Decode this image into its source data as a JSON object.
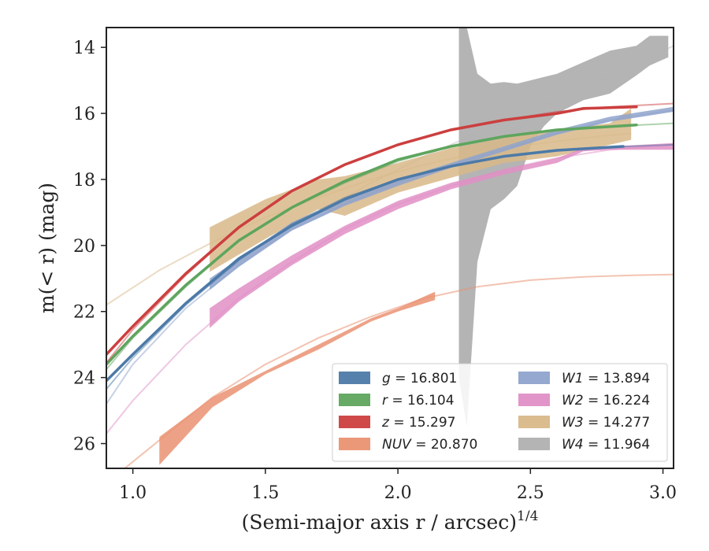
{
  "chart_data": {
    "type": "line",
    "xlabel": "(Semi-major axis r / arcsec)",
    "xlabel_superscript": "1/4",
    "ylabel": "m(< r) (mag)",
    "xlim": [
      0.9,
      3.04
    ],
    "ylim": [
      26.75,
      13.4
    ],
    "y_inverted": true,
    "x_ticks": [
      "1.0",
      "1.5",
      "2.0",
      "2.5",
      "3.0"
    ],
    "y_ticks": [
      "14",
      "16",
      "18",
      "20",
      "22",
      "24",
      "26"
    ],
    "grid": false,
    "legend_position": "lower-right",
    "series": [
      {
        "name": "g = 16.801",
        "band": "g",
        "total_mag": "16.801",
        "color": "#4c7aa8",
        "kind": "line",
        "model_x": [
          0.9,
          1.0,
          1.2,
          1.4,
          1.6,
          1.8,
          2.0,
          2.2,
          2.4,
          2.6,
          2.8,
          3.04
        ],
        "model_y": [
          24.35,
          23.4,
          21.8,
          20.45,
          19.35,
          18.55,
          18.0,
          17.6,
          17.3,
          17.12,
          17.02,
          16.95
        ],
        "model_opacity": 0.5,
        "data_x": [
          0.9,
          1.0,
          1.2,
          1.4,
          1.6,
          1.8,
          2.0,
          2.2,
          2.4,
          2.6,
          2.85
        ],
        "data_y": [
          24.1,
          23.3,
          21.75,
          20.4,
          19.4,
          18.6,
          18.0,
          17.6,
          17.3,
          17.12,
          17.0
        ]
      },
      {
        "name": "r = 16.104",
        "band": "r",
        "total_mag": "16.104",
        "color": "#5ea55e",
        "kind": "line",
        "model_x": [
          0.9,
          1.0,
          1.2,
          1.4,
          1.6,
          1.8,
          2.0,
          2.2,
          2.4,
          2.6,
          2.8,
          3.04
        ],
        "model_y": [
          23.75,
          22.8,
          21.25,
          19.85,
          18.85,
          18.1,
          17.45,
          17.0,
          16.7,
          16.5,
          16.4,
          16.3
        ],
        "model_opacity": 0.5,
        "data_x": [
          0.9,
          1.0,
          1.2,
          1.4,
          1.6,
          1.8,
          2.0,
          2.2,
          2.4,
          2.6,
          2.9
        ],
        "data_y": [
          23.6,
          22.75,
          21.2,
          19.85,
          18.85,
          18.05,
          17.4,
          17.0,
          16.7,
          16.5,
          16.35
        ]
      },
      {
        "name": "z = 15.297",
        "band": "z",
        "total_mag": "15.297",
        "color": "#cc3f3f",
        "kind": "line",
        "model_x": [
          0.9,
          1.0,
          1.2,
          1.4,
          1.6,
          1.8,
          2.0,
          2.2,
          2.4,
          2.6,
          2.8,
          3.04
        ],
        "model_y": [
          23.55,
          22.55,
          20.9,
          19.45,
          18.35,
          17.55,
          16.95,
          16.5,
          16.2,
          15.95,
          15.8,
          15.7
        ],
        "model_opacity": 0.5,
        "data_x": [
          0.9,
          1.0,
          1.2,
          1.4,
          1.6,
          1.8,
          2.0,
          2.2,
          2.4,
          2.6,
          2.7,
          2.9
        ],
        "data_y": [
          23.3,
          22.45,
          20.85,
          19.45,
          18.35,
          17.55,
          16.95,
          16.5,
          16.2,
          16.0,
          15.85,
          15.8
        ]
      },
      {
        "name": "NUV = 20.870",
        "band": "NUV",
        "total_mag": "20.870",
        "color": "#ea9272",
        "kind": "band",
        "model_x": [
          0.9,
          1.1,
          1.3,
          1.5,
          1.7,
          1.9,
          2.1,
          2.3,
          2.5,
          2.7,
          2.9,
          3.04
        ],
        "model_y": [
          27.2,
          25.9,
          24.6,
          23.6,
          22.8,
          22.15,
          21.6,
          21.25,
          21.05,
          20.95,
          20.9,
          20.88
        ],
        "model_opacity": 0.55,
        "data_x": [
          1.1,
          1.3,
          1.5,
          1.7,
          1.9,
          2.0,
          2.14
        ],
        "data_lo": [
          25.8,
          24.6,
          23.8,
          23.0,
          22.2,
          21.9,
          21.4
        ],
        "data_hi": [
          26.65,
          24.9,
          23.9,
          23.15,
          22.3,
          22.0,
          21.65
        ]
      },
      {
        "name": "W1 = 13.894",
        "band": "W1",
        "total_mag": "13.894",
        "color": "#8fa3cc",
        "kind": "band",
        "model_x": [
          0.9,
          1.0,
          1.2,
          1.4,
          1.6,
          1.8,
          2.0,
          2.2,
          2.4,
          2.6,
          2.8,
          3.04
        ],
        "model_y": [
          24.8,
          23.6,
          21.9,
          20.6,
          19.5,
          18.75,
          18.1,
          17.55,
          17.1,
          16.6,
          16.2,
          15.9
        ],
        "model_opacity": 0.5,
        "data_x": [
          1.29,
          1.4,
          1.6,
          1.8,
          2.0,
          2.2,
          2.4,
          2.6,
          2.8,
          3.04
        ],
        "data_lo": [
          21.0,
          20.4,
          19.3,
          18.6,
          18.0,
          17.5,
          17.0,
          16.5,
          16.1,
          15.8
        ],
        "data_hi": [
          21.35,
          20.65,
          19.55,
          18.8,
          18.2,
          17.65,
          17.15,
          16.65,
          16.25,
          15.95
        ]
      },
      {
        "name": "W2 = 16.224",
        "band": "W2",
        "total_mag": "16.224",
        "color": "#e08fc6",
        "kind": "band",
        "model_x": [
          0.9,
          1.0,
          1.2,
          1.4,
          1.6,
          1.8,
          2.0,
          2.2,
          2.4,
          2.6,
          2.8,
          3.04
        ],
        "model_y": [
          25.7,
          24.7,
          23.0,
          21.6,
          20.5,
          19.5,
          18.75,
          18.2,
          17.7,
          17.35,
          17.1,
          16.95
        ],
        "model_opacity": 0.5,
        "data_x": [
          1.29,
          1.4,
          1.6,
          1.8,
          2.0,
          2.2,
          2.4,
          2.6,
          2.7,
          2.8,
          3.04
        ],
        "data_lo": [
          21.9,
          21.3,
          20.3,
          19.4,
          18.65,
          18.1,
          17.7,
          17.35,
          17.05,
          17.0,
          16.9
        ],
        "data_hi": [
          22.5,
          21.7,
          20.6,
          19.65,
          18.9,
          18.3,
          17.85,
          17.5,
          17.15,
          17.1,
          17.1
        ]
      },
      {
        "name": "W3 = 14.277",
        "band": "W3",
        "total_mag": "14.277",
        "color": "#d8b888",
        "kind": "band",
        "model_x": [
          0.9,
          1.1,
          1.3,
          1.5,
          1.7,
          1.9,
          2.1,
          2.3,
          2.5,
          2.7,
          2.88
        ],
        "model_y": [
          21.8,
          20.75,
          19.9,
          19.15,
          18.55,
          18.0,
          17.55,
          17.2,
          16.95,
          16.75,
          16.6
        ],
        "model_opacity": 0.5,
        "data_x": [
          1.29,
          1.5,
          1.7,
          1.8,
          2.0,
          2.2,
          2.4,
          2.6,
          2.8,
          2.88
        ],
        "data_lo": [
          19.45,
          18.6,
          18.0,
          17.9,
          17.5,
          17.05,
          16.75,
          16.5,
          16.3,
          15.85
        ],
        "data_hi": [
          20.8,
          19.8,
          18.9,
          19.1,
          18.4,
          17.95,
          17.5,
          17.3,
          16.95,
          16.8
        ]
      },
      {
        "name": "W4 = 11.964",
        "band": "W4",
        "total_mag": "11.964",
        "color": "#b0b0b0",
        "kind": "band",
        "model_x": [
          1.29,
          1.5,
          1.7,
          1.9,
          2.1,
          2.3,
          2.5,
          2.7,
          2.9,
          3.04
        ],
        "model_y": [
          21.1,
          20.0,
          19.0,
          18.1,
          17.3,
          16.6,
          15.9,
          15.2,
          14.5,
          13.95
        ],
        "model_opacity": 0.4,
        "data_x": [
          2.23,
          2.26,
          2.3,
          2.35,
          2.4,
          2.45,
          2.5,
          2.55,
          2.6,
          2.7,
          2.8,
          2.9,
          2.95,
          3.02
        ],
        "data_lo": [
          13.4,
          13.4,
          14.8,
          15.1,
          15.05,
          15.1,
          15.0,
          14.9,
          14.8,
          14.45,
          14.1,
          13.95,
          13.65,
          13.65
        ],
        "data_hi": [
          24.0,
          25.5,
          20.5,
          18.9,
          18.6,
          18.2,
          17.0,
          16.4,
          16.0,
          15.6,
          15.4,
          14.85,
          14.55,
          14.3
        ]
      }
    ]
  }
}
